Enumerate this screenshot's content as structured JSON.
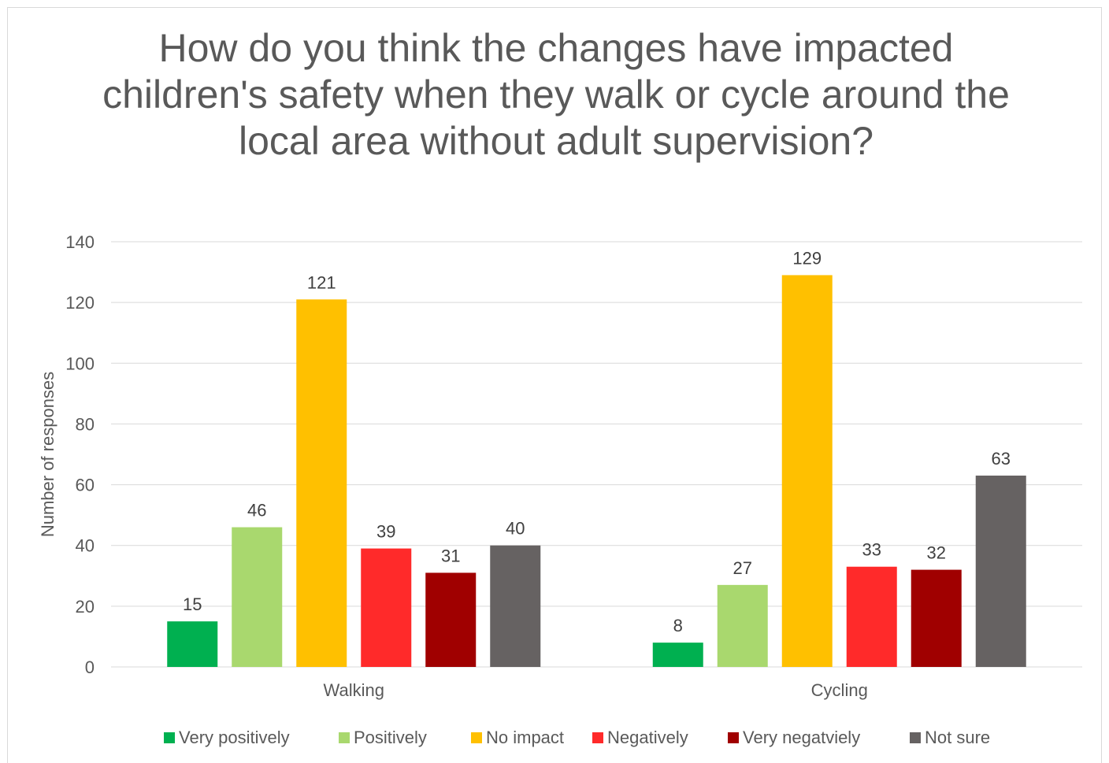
{
  "chart_data": {
    "type": "bar",
    "title": "How do you think the changes have impacted children's safety when they walk or cycle around the local area without adult supervision?",
    "xlabel": "",
    "ylabel": "Number of responses",
    "ylim": [
      0,
      140
    ],
    "yticks": [
      0,
      20,
      40,
      60,
      80,
      100,
      120,
      140
    ],
    "grid": true,
    "legend_position": "bottom",
    "categories": [
      "Walking",
      "Cycling"
    ],
    "series": [
      {
        "name": "Very positively",
        "color": "#00b050",
        "values": [
          15,
          8
        ]
      },
      {
        "name": "Positively",
        "color": "#a9d86e",
        "values": [
          46,
          27
        ]
      },
      {
        "name": "No impact",
        "color": "#ffc000",
        "values": [
          121,
          129
        ]
      },
      {
        "name": "Negatively",
        "color": "#ff2a2a",
        "values": [
          39,
          33
        ]
      },
      {
        "name": "Very negatviely",
        "color": "#a00000",
        "values": [
          31,
          32
        ]
      },
      {
        "name": "Not sure",
        "color": "#666262",
        "values": [
          40,
          63
        ]
      }
    ]
  }
}
